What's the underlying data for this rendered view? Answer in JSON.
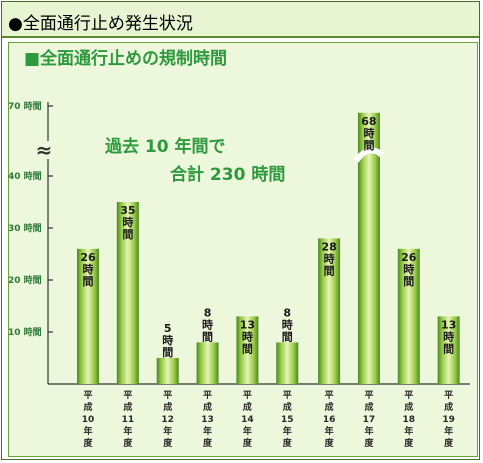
{
  "header": {
    "title": "●全面通行止め発生状況"
  },
  "chart_data": {
    "type": "bar",
    "title": "■全面通行止めの規制時間",
    "categories": [
      "平成10年度",
      "平成11年度",
      "平成12年度",
      "平成13年度",
      "平成14年度",
      "平成15年度",
      "平成16年度",
      "平成17年度",
      "平成18年度",
      "平成19年度"
    ],
    "values": [
      26,
      35,
      5,
      8,
      13,
      8,
      28,
      68,
      26,
      13
    ],
    "bar_labels": [
      "26時間",
      "35時間",
      "5時間",
      "8時間",
      "13時間",
      "8時間",
      "28時間",
      "68時間",
      "26時間",
      "13時間"
    ],
    "category_lines": [
      [
        "平",
        "成",
        "10",
        "年",
        "度"
      ],
      [
        "平",
        "成",
        "11",
        "年",
        "度"
      ],
      [
        "平",
        "成",
        "12",
        "年",
        "度"
      ],
      [
        "平",
        "成",
        "13",
        "年",
        "度"
      ],
      [
        "平",
        "成",
        "14",
        "年",
        "度"
      ],
      [
        "平",
        "成",
        "15",
        "年",
        "度"
      ],
      [
        "平",
        "成",
        "16",
        "年",
        "度"
      ],
      [
        "平",
        "成",
        "17",
        "年",
        "度"
      ],
      [
        "平",
        "成",
        "18",
        "年",
        "度"
      ],
      [
        "平",
        "成",
        "19",
        "年",
        "度"
      ]
    ],
    "yticks": [
      {
        "value": 10,
        "label": "10 時間"
      },
      {
        "value": 20,
        "label": "20 時間"
      },
      {
        "value": 30,
        "label": "30 時間"
      },
      {
        "value": 40,
        "label": "40 時間"
      },
      {
        "value": 70,
        "label": "70 時間"
      }
    ],
    "axis_break": {
      "from": 40,
      "to": 70,
      "symbol": "≈"
    },
    "annotations": [
      "過去 10 年間で",
      "合計 230 時間"
    ],
    "xlabel": "",
    "ylabel": "",
    "grid": false,
    "colors": {
      "bar_light": "#e4f4b4",
      "bar_mid": "#9ccc4c",
      "bar_dark": "#4a8a1c",
      "accent": "#2e9a3e"
    }
  }
}
